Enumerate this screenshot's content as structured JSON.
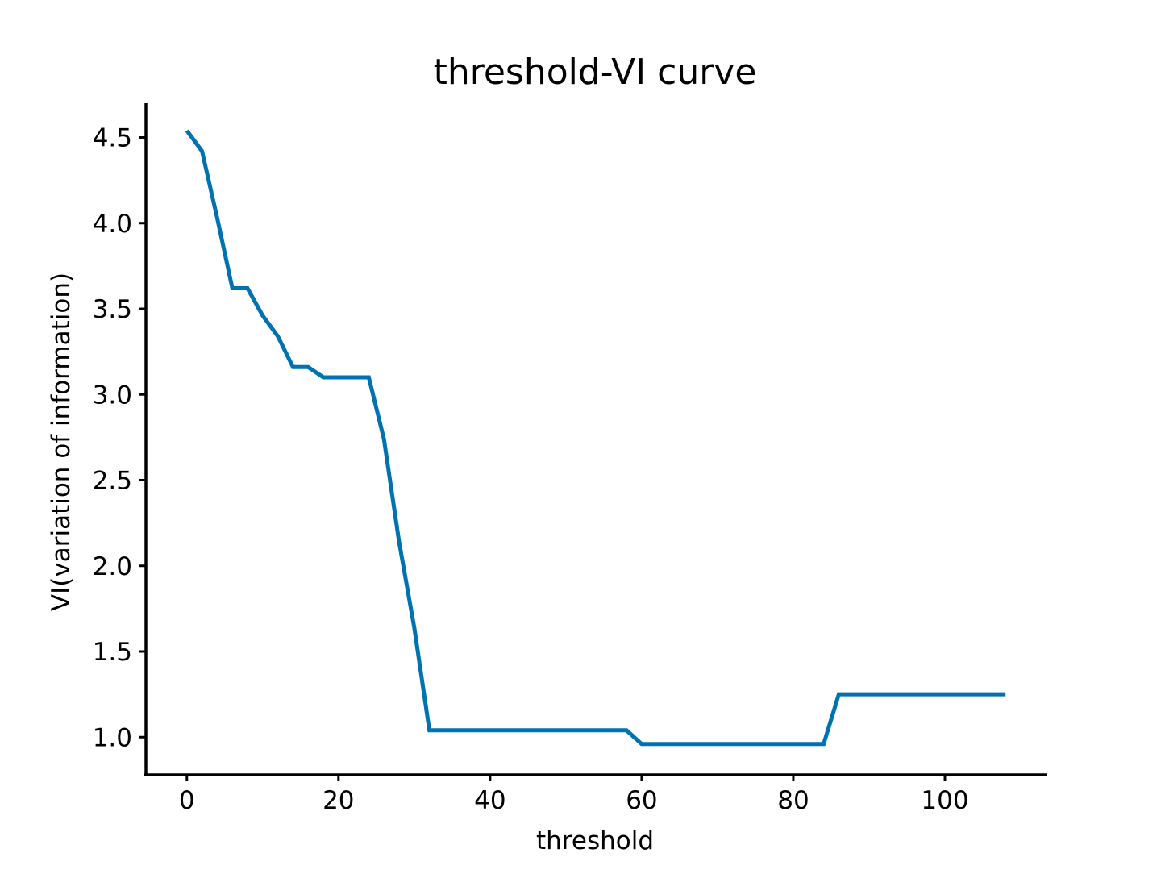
{
  "chart_data": {
    "type": "line",
    "title": "threshold-VI curve",
    "xlabel": "threshold",
    "ylabel": "VI(variation of information)",
    "xlim": [
      -5.4,
      113.4
    ],
    "ylim": [
      0.78,
      4.7
    ],
    "x_ticks": [
      0,
      20,
      40,
      60,
      80,
      100
    ],
    "y_ticks": [
      1.0,
      1.5,
      2.0,
      2.5,
      3.0,
      3.5,
      4.0,
      4.5
    ],
    "y_tick_labels": [
      "1.0",
      "1.5",
      "2.0",
      "2.5",
      "3.0",
      "3.5",
      "4.0",
      "4.5"
    ],
    "grid": false,
    "series_color": "#0072b2",
    "series": [
      {
        "x": [
          0,
          2,
          4,
          6,
          8,
          10,
          12,
          14,
          16,
          18,
          20,
          22,
          24,
          26,
          28,
          30,
          32,
          34,
          36,
          38,
          40,
          42,
          44,
          46,
          48,
          50,
          52,
          54,
          56,
          58,
          60,
          62,
          64,
          66,
          68,
          70,
          72,
          74,
          76,
          78,
          80,
          82,
          84,
          86,
          88,
          90,
          92,
          94,
          96,
          98,
          100,
          102,
          104,
          106,
          108
        ],
        "y": [
          4.54,
          4.42,
          4.03,
          3.62,
          3.62,
          3.46,
          3.34,
          3.16,
          3.16,
          3.1,
          3.1,
          3.1,
          3.1,
          2.74,
          2.14,
          1.64,
          1.04,
          1.04,
          1.04,
          1.04,
          1.04,
          1.04,
          1.04,
          1.04,
          1.04,
          1.04,
          1.04,
          1.04,
          1.04,
          1.04,
          0.96,
          0.96,
          0.96,
          0.96,
          0.96,
          0.96,
          0.96,
          0.96,
          0.96,
          0.96,
          0.96,
          0.96,
          0.96,
          1.25,
          1.25,
          1.25,
          1.25,
          1.25,
          1.25,
          1.25,
          1.25,
          1.25,
          1.25,
          1.25,
          1.25
        ]
      }
    ]
  }
}
